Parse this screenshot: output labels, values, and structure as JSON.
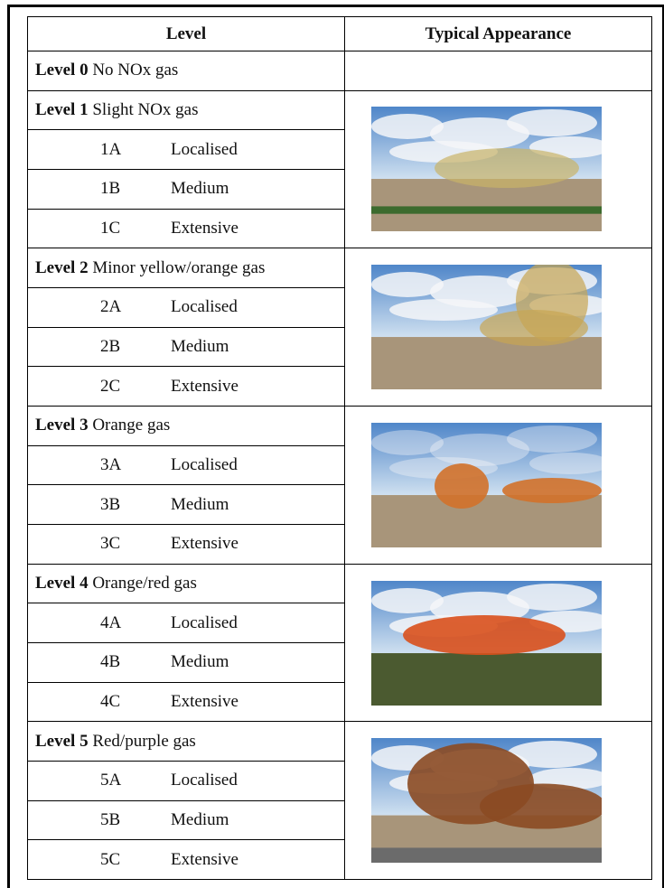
{
  "table": {
    "header": [
      "Level",
      "Typical Appearance"
    ],
    "levels": [
      {
        "label": "Level 0",
        "description": "No NOx gas",
        "subs": []
      },
      {
        "label": "Level 1",
        "description": "Slight NOx gas",
        "subs": [
          {
            "code": "1A",
            "name": "Localised"
          },
          {
            "code": "1B",
            "name": "Medium"
          },
          {
            "code": "1C",
            "name": "Extensive"
          }
        ]
      },
      {
        "label": "Level 2",
        "description": "Minor yellow/orange gas",
        "subs": [
          {
            "code": "2A",
            "name": "Localised"
          },
          {
            "code": "2B",
            "name": "Medium"
          },
          {
            "code": "2C",
            "name": "Extensive"
          }
        ]
      },
      {
        "label": "Level 3",
        "description": "Orange gas",
        "subs": [
          {
            "code": "3A",
            "name": "Localised"
          },
          {
            "code": "3B",
            "name": "Medium"
          },
          {
            "code": "3C",
            "name": "Extensive"
          }
        ]
      },
      {
        "label": "Level 4",
        "description": "Orange/red gas",
        "subs": [
          {
            "code": "4A",
            "name": "Localised"
          },
          {
            "code": "4B",
            "name": "Medium"
          },
          {
            "code": "4C",
            "name": "Extensive"
          }
        ]
      },
      {
        "label": "Level 5",
        "description": "Red/purple gas",
        "subs": [
          {
            "code": "5A",
            "name": "Localised"
          },
          {
            "code": "5B",
            "name": "Medium"
          },
          {
            "code": "5C",
            "name": "Extensive"
          }
        ]
      }
    ]
  }
}
